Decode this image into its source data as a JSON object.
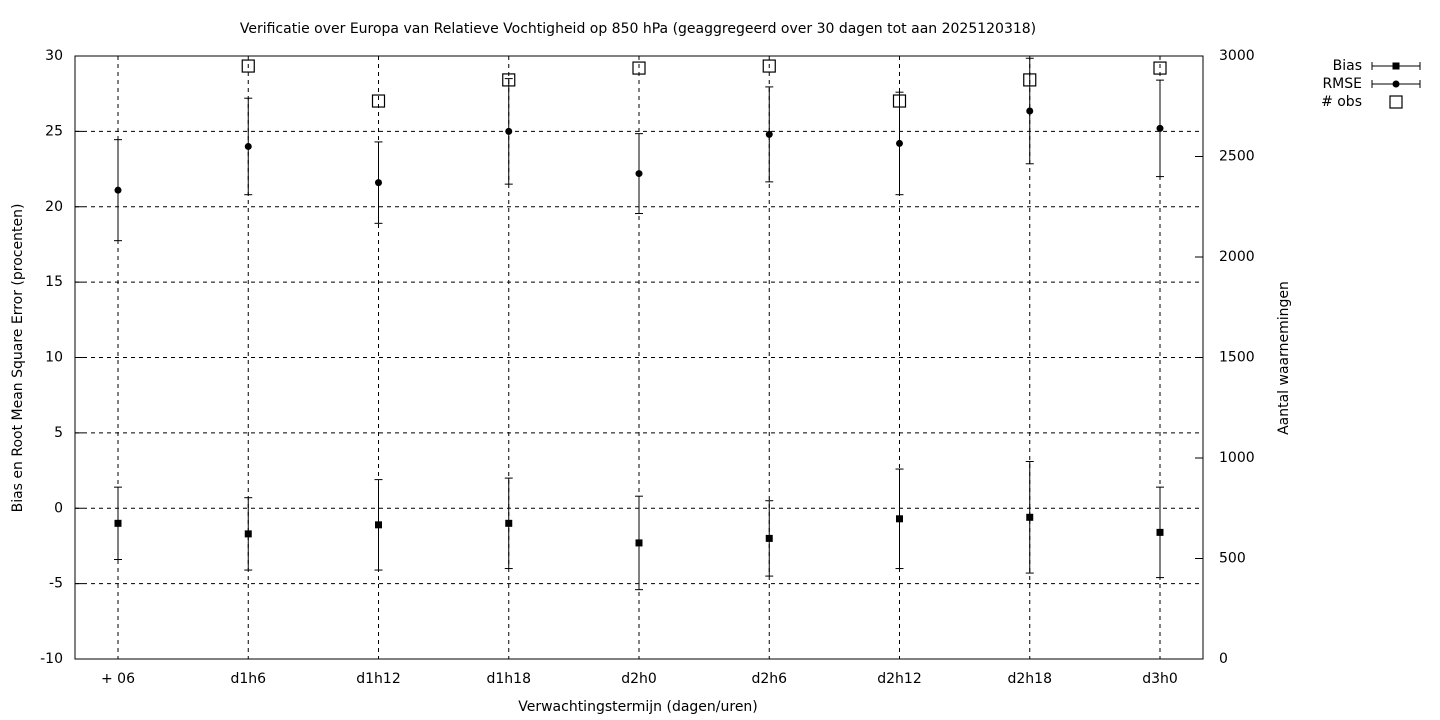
{
  "chart_data": {
    "type": "errorbar",
    "title": "Verificatie over Europa van Relatieve Vochtigheid op 850 hPa (geaggregeerd over 30 dagen tot aan 2025120318)",
    "x_label": "Verwachtingstermijn (dagen/uren)",
    "y_label": "Bias en Root Mean Square Error (procenten)",
    "y2_label": "Aantal waarnemingen",
    "categories": [
      "+ 06",
      "d1h6",
      "d1h12",
      "d1h18",
      "d2h0",
      "d2h6",
      "d2h12",
      "d2h18",
      "d3h0"
    ],
    "ylim": [
      -10,
      30
    ],
    "yticks": [
      -10,
      -5,
      0,
      5,
      10,
      15,
      20,
      25,
      30
    ],
    "y2lim": [
      0,
      3000
    ],
    "y2ticks": [
      0,
      500,
      1000,
      1500,
      2000,
      2500,
      3000
    ],
    "grid": true,
    "legend": "top-right",
    "series": [
      {
        "name": "Bias",
        "color": "#000000",
        "marker": "square",
        "values": [
          -1.0,
          -1.7,
          -1.1,
          -1.0,
          -2.3,
          -2.0,
          -0.7,
          -0.6,
          -1.6
        ],
        "errors": [
          2.4,
          2.4,
          3.0,
          3.0,
          3.1,
          2.5,
          3.3,
          3.7,
          3.0
        ]
      },
      {
        "name": "RMSE",
        "color": "#000000",
        "marker": "circle",
        "values": [
          21.1,
          24.0,
          21.6,
          25.0,
          22.2,
          24.8,
          24.2,
          26.35,
          25.2
        ],
        "errors": [
          3.35,
          3.2,
          2.7,
          3.5,
          2.65,
          3.15,
          3.4,
          3.5,
          3.2
        ]
      },
      {
        "name": "# obs",
        "color": "#000000",
        "marker": "open-square",
        "axis": "y2",
        "values": [
          null,
          2950,
          2776,
          2881,
          2940,
          2950,
          2776,
          2881,
          2940
        ]
      }
    ]
  }
}
